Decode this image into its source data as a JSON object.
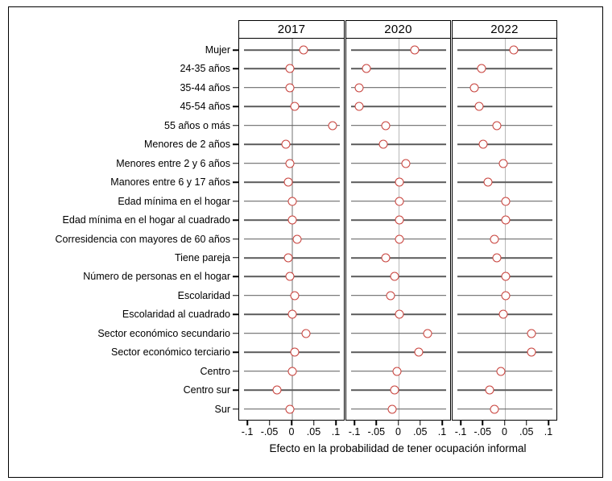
{
  "figure": {
    "xaxis_title": "Efecto en la probabilidad de tener ocupación informal"
  },
  "colors": {
    "marker": "#c8413b",
    "row_line": "#5c5c5c",
    "zero_line": "#b8b8b8",
    "border": "#000000",
    "background": "#ffffff",
    "text": "#000000"
  },
  "chart_data": {
    "type": "scatter",
    "subtype": "coefficient-dot-plot",
    "title": "",
    "xlabel": "Efecto en la probabilidad de tener ocupación informal",
    "ylabel": "",
    "xlim": [
      -0.1,
      0.1
    ],
    "xticks": [
      -0.1,
      -0.05,
      0,
      0.05,
      0.1
    ],
    "xtick_labels": [
      "-.1",
      "-.05",
      "0",
      ".05",
      ".1"
    ],
    "grid": "horizontal line per category plus vertical zero reference line per panel",
    "legend_position": "none",
    "panels": [
      "2017",
      "2020",
      "2022"
    ],
    "categories": [
      "Mujer",
      "24-35 años",
      "35-44 años",
      "45-54 años",
      "55 años o más",
      "Menores de 2 años",
      "Menores entre 2 y 6 años",
      "Manores entre 6 y 17 años",
      "Edad mínima en el hogar",
      "Edad mínima en el hogar al cuadrado",
      "Corresidencia con mayores de 60 años",
      "Tiene pareja",
      "Número de personas en el hogar",
      "Escolaridad",
      "Escolaridad al cuadrado",
      "Sector económico secundario",
      "Sector económico terciario",
      "Centro",
      "Centro sur",
      "Sur"
    ],
    "series": [
      {
        "name": "2017",
        "values": [
          0.025,
          -0.005,
          -0.005,
          0.005,
          0.09,
          -0.015,
          -0.005,
          -0.01,
          0,
          0,
          0.01,
          -0.01,
          -0.005,
          0.005,
          0,
          0.03,
          0.005,
          0,
          -0.035,
          -0.005
        ]
      },
      {
        "name": "2020",
        "values": [
          0.035,
          -0.075,
          -0.09,
          -0.09,
          -0.03,
          -0.035,
          0.015,
          0,
          0,
          0,
          0,
          -0.03,
          -0.01,
          -0.02,
          0,
          0.065,
          0.045,
          -0.005,
          -0.01,
          -0.015
        ]
      },
      {
        "name": "2022",
        "values": [
          0.02,
          -0.055,
          -0.07,
          -0.06,
          -0.02,
          -0.05,
          -0.005,
          -0.04,
          0,
          0,
          -0.025,
          -0.02,
          0,
          0,
          -0.005,
          0.06,
          0.06,
          -0.01,
          -0.035,
          -0.025
        ]
      }
    ],
    "marker": {
      "shape": "hollow-circle",
      "color": "#c8413b"
    }
  }
}
